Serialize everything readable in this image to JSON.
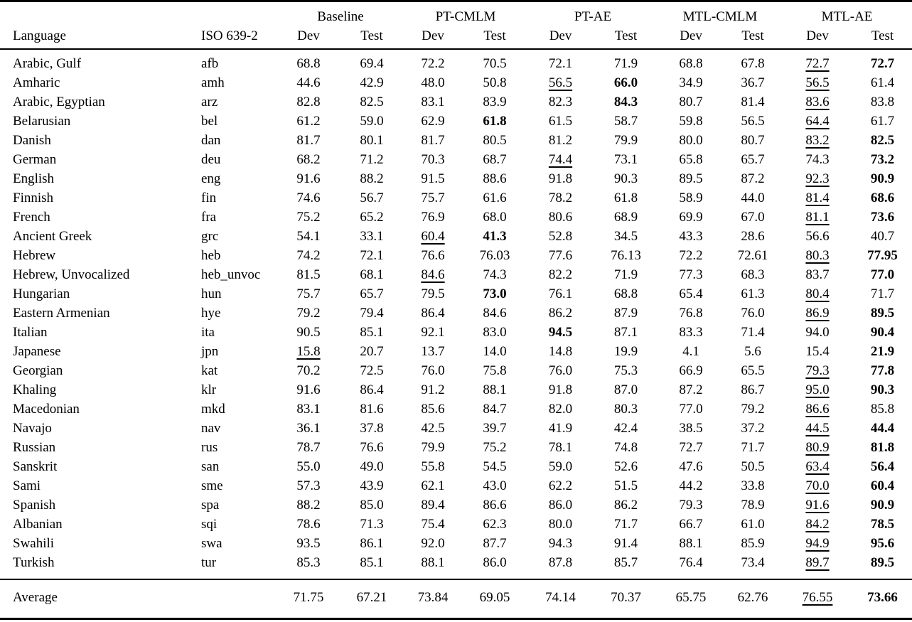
{
  "page": {
    "background": "#ffffff",
    "text_color": "#000000"
  },
  "table": {
    "header": {
      "language_label": "Language",
      "iso_label": "ISO 639-2",
      "groups": [
        {
          "label": "Baseline"
        },
        {
          "label": "PT-CMLM"
        },
        {
          "label": "PT-AE"
        },
        {
          "label": "MTL-CMLM"
        },
        {
          "label": "MTL-AE"
        }
      ],
      "subcolumns": [
        "Dev",
        "Test"
      ]
    },
    "rows": [
      {
        "language": "Arabic, Gulf",
        "iso": "afb",
        "cells": [
          {
            "v": "68.8"
          },
          {
            "v": "69.4"
          },
          {
            "v": "72.2"
          },
          {
            "v": "70.5"
          },
          {
            "v": "72.1"
          },
          {
            "v": "71.9"
          },
          {
            "v": "68.8"
          },
          {
            "v": "67.8"
          },
          {
            "v": "72.7",
            "u": true
          },
          {
            "v": "72.7",
            "b": true
          }
        ]
      },
      {
        "language": "Amharic",
        "iso": "amh",
        "cells": [
          {
            "v": "44.6"
          },
          {
            "v": "42.9"
          },
          {
            "v": "48.0"
          },
          {
            "v": "50.8"
          },
          {
            "v": "56.5",
            "u": true
          },
          {
            "v": "66.0",
            "b": true
          },
          {
            "v": "34.9"
          },
          {
            "v": "36.7"
          },
          {
            "v": "56.5",
            "u": true
          },
          {
            "v": "61.4"
          }
        ]
      },
      {
        "language": "Arabic, Egyptian",
        "iso": "arz",
        "cells": [
          {
            "v": "82.8"
          },
          {
            "v": "82.5"
          },
          {
            "v": "83.1"
          },
          {
            "v": "83.9"
          },
          {
            "v": "82.3"
          },
          {
            "v": "84.3",
            "b": true
          },
          {
            "v": "80.7"
          },
          {
            "v": "81.4"
          },
          {
            "v": "83.6",
            "u": true
          },
          {
            "v": "83.8"
          }
        ]
      },
      {
        "language": "Belarusian",
        "iso": "bel",
        "cells": [
          {
            "v": "61.2"
          },
          {
            "v": "59.0"
          },
          {
            "v": "62.9"
          },
          {
            "v": "61.8",
            "b": true
          },
          {
            "v": "61.5"
          },
          {
            "v": "58.7"
          },
          {
            "v": "59.8"
          },
          {
            "v": "56.5"
          },
          {
            "v": "64.4",
            "u": true
          },
          {
            "v": "61.7"
          }
        ]
      },
      {
        "language": "Danish",
        "iso": "dan",
        "cells": [
          {
            "v": "81.7"
          },
          {
            "v": "80.1"
          },
          {
            "v": "81.7"
          },
          {
            "v": "80.5"
          },
          {
            "v": "81.2"
          },
          {
            "v": "79.9"
          },
          {
            "v": "80.0"
          },
          {
            "v": "80.7"
          },
          {
            "v": "83.2",
            "u": true
          },
          {
            "v": "82.5",
            "b": true
          }
        ]
      },
      {
        "language": "German",
        "iso": "deu",
        "cells": [
          {
            "v": "68.2"
          },
          {
            "v": "71.2"
          },
          {
            "v": "70.3"
          },
          {
            "v": "68.7"
          },
          {
            "v": "74.4",
            "u": true
          },
          {
            "v": "73.1"
          },
          {
            "v": "65.8"
          },
          {
            "v": "65.7"
          },
          {
            "v": "74.3"
          },
          {
            "v": "73.2",
            "b": true
          }
        ]
      },
      {
        "language": "English",
        "iso": "eng",
        "cells": [
          {
            "v": "91.6"
          },
          {
            "v": "88.2"
          },
          {
            "v": "91.5"
          },
          {
            "v": "88.6"
          },
          {
            "v": "91.8"
          },
          {
            "v": "90.3"
          },
          {
            "v": "89.5"
          },
          {
            "v": "87.2"
          },
          {
            "v": "92.3",
            "u": true
          },
          {
            "v": "90.9",
            "b": true
          }
        ]
      },
      {
        "language": "Finnish",
        "iso": "fin",
        "cells": [
          {
            "v": "74.6"
          },
          {
            "v": "56.7"
          },
          {
            "v": "75.7"
          },
          {
            "v": "61.6"
          },
          {
            "v": "78.2"
          },
          {
            "v": "61.8"
          },
          {
            "v": "58.9"
          },
          {
            "v": "44.0"
          },
          {
            "v": "81.4",
            "u": true
          },
          {
            "v": "68.6",
            "b": true
          }
        ]
      },
      {
        "language": "French",
        "iso": "fra",
        "cells": [
          {
            "v": "75.2"
          },
          {
            "v": "65.2"
          },
          {
            "v": "76.9"
          },
          {
            "v": "68.0"
          },
          {
            "v": "80.6"
          },
          {
            "v": "68.9"
          },
          {
            "v": "69.9"
          },
          {
            "v": "67.0"
          },
          {
            "v": "81.1",
            "u": true
          },
          {
            "v": "73.6",
            "b": true
          }
        ]
      },
      {
        "language": "Ancient Greek",
        "iso": "grc",
        "cells": [
          {
            "v": "54.1"
          },
          {
            "v": "33.1"
          },
          {
            "v": "60.4",
            "u": true
          },
          {
            "v": "41.3",
            "b": true
          },
          {
            "v": "52.8"
          },
          {
            "v": "34.5"
          },
          {
            "v": "43.3"
          },
          {
            "v": "28.6"
          },
          {
            "v": "56.6"
          },
          {
            "v": "40.7"
          }
        ]
      },
      {
        "language": "Hebrew",
        "iso": "heb",
        "cells": [
          {
            "v": "74.2"
          },
          {
            "v": "72.1"
          },
          {
            "v": "76.6"
          },
          {
            "v": "76.03"
          },
          {
            "v": "77.6"
          },
          {
            "v": "76.13"
          },
          {
            "v": "72.2"
          },
          {
            "v": "72.61"
          },
          {
            "v": "80.3",
            "u": true
          },
          {
            "v": "77.95",
            "b": true
          }
        ]
      },
      {
        "language": "Hebrew, Unvocalized",
        "iso": "heb_unvoc",
        "cells": [
          {
            "v": "81.5"
          },
          {
            "v": "68.1"
          },
          {
            "v": "84.6",
            "u": true
          },
          {
            "v": "74.3"
          },
          {
            "v": "82.2"
          },
          {
            "v": "71.9"
          },
          {
            "v": "77.3"
          },
          {
            "v": "68.3"
          },
          {
            "v": "83.7"
          },
          {
            "v": "77.0",
            "b": true
          }
        ]
      },
      {
        "language": "Hungarian",
        "iso": "hun",
        "cells": [
          {
            "v": "75.7"
          },
          {
            "v": "65.7"
          },
          {
            "v": "79.5"
          },
          {
            "v": "73.0",
            "b": true
          },
          {
            "v": "76.1"
          },
          {
            "v": "68.8"
          },
          {
            "v": "65.4"
          },
          {
            "v": "61.3"
          },
          {
            "v": "80.4",
            "u": true
          },
          {
            "v": "71.7"
          }
        ]
      },
      {
        "language": "Eastern Armenian",
        "iso": "hye",
        "cells": [
          {
            "v": "79.2"
          },
          {
            "v": "79.4"
          },
          {
            "v": "86.4"
          },
          {
            "v": "84.6"
          },
          {
            "v": "86.2"
          },
          {
            "v": "87.9"
          },
          {
            "v": "76.8"
          },
          {
            "v": "76.0"
          },
          {
            "v": "86.9",
            "u": true
          },
          {
            "v": "89.5",
            "b": true
          }
        ]
      },
      {
        "language": "Italian",
        "iso": "ita",
        "cells": [
          {
            "v": "90.5"
          },
          {
            "v": "85.1"
          },
          {
            "v": "92.1"
          },
          {
            "v": "83.0"
          },
          {
            "v": "94.5",
            "b": true
          },
          {
            "v": "87.1"
          },
          {
            "v": "83.3"
          },
          {
            "v": "71.4"
          },
          {
            "v": "94.0"
          },
          {
            "v": "90.4",
            "b": true
          }
        ]
      },
      {
        "language": "Japanese",
        "iso": "jpn",
        "cells": [
          {
            "v": "15.8",
            "u": true
          },
          {
            "v": "20.7"
          },
          {
            "v": "13.7"
          },
          {
            "v": "14.0"
          },
          {
            "v": "14.8"
          },
          {
            "v": "19.9"
          },
          {
            "v": "4.1"
          },
          {
            "v": "5.6"
          },
          {
            "v": "15.4"
          },
          {
            "v": "21.9",
            "b": true
          }
        ]
      },
      {
        "language": "Georgian",
        "iso": "kat",
        "cells": [
          {
            "v": "70.2"
          },
          {
            "v": "72.5"
          },
          {
            "v": "76.0"
          },
          {
            "v": "75.8"
          },
          {
            "v": "76.0"
          },
          {
            "v": "75.3"
          },
          {
            "v": "66.9"
          },
          {
            "v": "65.5"
          },
          {
            "v": "79.3",
            "u": true
          },
          {
            "v": "77.8",
            "b": true
          }
        ]
      },
      {
        "language": "Khaling",
        "iso": "klr",
        "cells": [
          {
            "v": "91.6"
          },
          {
            "v": "86.4"
          },
          {
            "v": "91.2"
          },
          {
            "v": "88.1"
          },
          {
            "v": "91.8"
          },
          {
            "v": "87.0"
          },
          {
            "v": "87.2"
          },
          {
            "v": "86.7"
          },
          {
            "v": "95.0",
            "u": true
          },
          {
            "v": "90.3",
            "b": true
          }
        ]
      },
      {
        "language": "Macedonian",
        "iso": "mkd",
        "cells": [
          {
            "v": "83.1"
          },
          {
            "v": "81.6"
          },
          {
            "v": "85.6"
          },
          {
            "v": "84.7"
          },
          {
            "v": "82.0"
          },
          {
            "v": "80.3"
          },
          {
            "v": "77.0"
          },
          {
            "v": "79.2"
          },
          {
            "v": "86.6",
            "u": true
          },
          {
            "v": "85.8"
          }
        ]
      },
      {
        "language": "Navajo",
        "iso": "nav",
        "cells": [
          {
            "v": "36.1"
          },
          {
            "v": "37.8"
          },
          {
            "v": "42.5"
          },
          {
            "v": "39.7"
          },
          {
            "v": "41.9"
          },
          {
            "v": "42.4"
          },
          {
            "v": "38.5"
          },
          {
            "v": "37.2"
          },
          {
            "v": "44.5",
            "u": true
          },
          {
            "v": "44.4",
            "b": true
          }
        ]
      },
      {
        "language": "Russian",
        "iso": "rus",
        "cells": [
          {
            "v": "78.7"
          },
          {
            "v": "76.6"
          },
          {
            "v": "79.9"
          },
          {
            "v": "75.2"
          },
          {
            "v": "78.1"
          },
          {
            "v": "74.8"
          },
          {
            "v": "72.7"
          },
          {
            "v": "71.7"
          },
          {
            "v": "80.9",
            "u": true
          },
          {
            "v": "81.8",
            "b": true
          }
        ]
      },
      {
        "language": "Sanskrit",
        "iso": "san",
        "cells": [
          {
            "v": "55.0"
          },
          {
            "v": "49.0"
          },
          {
            "v": "55.8"
          },
          {
            "v": "54.5"
          },
          {
            "v": "59.0"
          },
          {
            "v": "52.6"
          },
          {
            "v": "47.6"
          },
          {
            "v": "50.5"
          },
          {
            "v": "63.4",
            "u": true
          },
          {
            "v": "56.4",
            "b": true
          }
        ]
      },
      {
        "language": "Sami",
        "iso": "sme",
        "cells": [
          {
            "v": "57.3"
          },
          {
            "v": "43.9"
          },
          {
            "v": "62.1"
          },
          {
            "v": "43.0"
          },
          {
            "v": "62.2"
          },
          {
            "v": "51.5"
          },
          {
            "v": "44.2"
          },
          {
            "v": "33.8"
          },
          {
            "v": "70.0",
            "u": true
          },
          {
            "v": "60.4",
            "b": true
          }
        ]
      },
      {
        "language": "Spanish",
        "iso": "spa",
        "cells": [
          {
            "v": "88.2"
          },
          {
            "v": "85.0"
          },
          {
            "v": "89.4"
          },
          {
            "v": "86.6"
          },
          {
            "v": "86.0"
          },
          {
            "v": "86.2"
          },
          {
            "v": "79.3"
          },
          {
            "v": "78.9"
          },
          {
            "v": "91.6",
            "u": true
          },
          {
            "v": "90.9",
            "b": true
          }
        ]
      },
      {
        "language": "Albanian",
        "iso": "sqi",
        "cells": [
          {
            "v": "78.6"
          },
          {
            "v": "71.3"
          },
          {
            "v": "75.4"
          },
          {
            "v": "62.3"
          },
          {
            "v": "80.0"
          },
          {
            "v": "71.7"
          },
          {
            "v": "66.7"
          },
          {
            "v": "61.0"
          },
          {
            "v": "84.2",
            "u": true
          },
          {
            "v": "78.5",
            "b": true
          }
        ]
      },
      {
        "language": "Swahili",
        "iso": "swa",
        "cells": [
          {
            "v": "93.5"
          },
          {
            "v": "86.1"
          },
          {
            "v": "92.0"
          },
          {
            "v": "87.7"
          },
          {
            "v": "94.3"
          },
          {
            "v": "91.4"
          },
          {
            "v": "88.1"
          },
          {
            "v": "85.9"
          },
          {
            "v": "94.9",
            "u": true
          },
          {
            "v": "95.6",
            "b": true
          }
        ]
      },
      {
        "language": "Turkish",
        "iso": "tur",
        "cells": [
          {
            "v": "85.3"
          },
          {
            "v": "85.1"
          },
          {
            "v": "88.1"
          },
          {
            "v": "86.0"
          },
          {
            "v": "87.8"
          },
          {
            "v": "85.7"
          },
          {
            "v": "76.4"
          },
          {
            "v": "73.4"
          },
          {
            "v": "89.7",
            "u": true
          },
          {
            "v": "89.5",
            "b": true
          }
        ]
      }
    ],
    "footer": {
      "label": "Average",
      "cells": [
        {
          "v": "71.75"
        },
        {
          "v": "67.21"
        },
        {
          "v": "73.84"
        },
        {
          "v": "69.05"
        },
        {
          "v": "74.14"
        },
        {
          "v": "70.37"
        },
        {
          "v": "65.75"
        },
        {
          "v": "62.76"
        },
        {
          "v": "76.55",
          "u": true
        },
        {
          "v": "73.66",
          "b": true
        }
      ]
    }
  }
}
